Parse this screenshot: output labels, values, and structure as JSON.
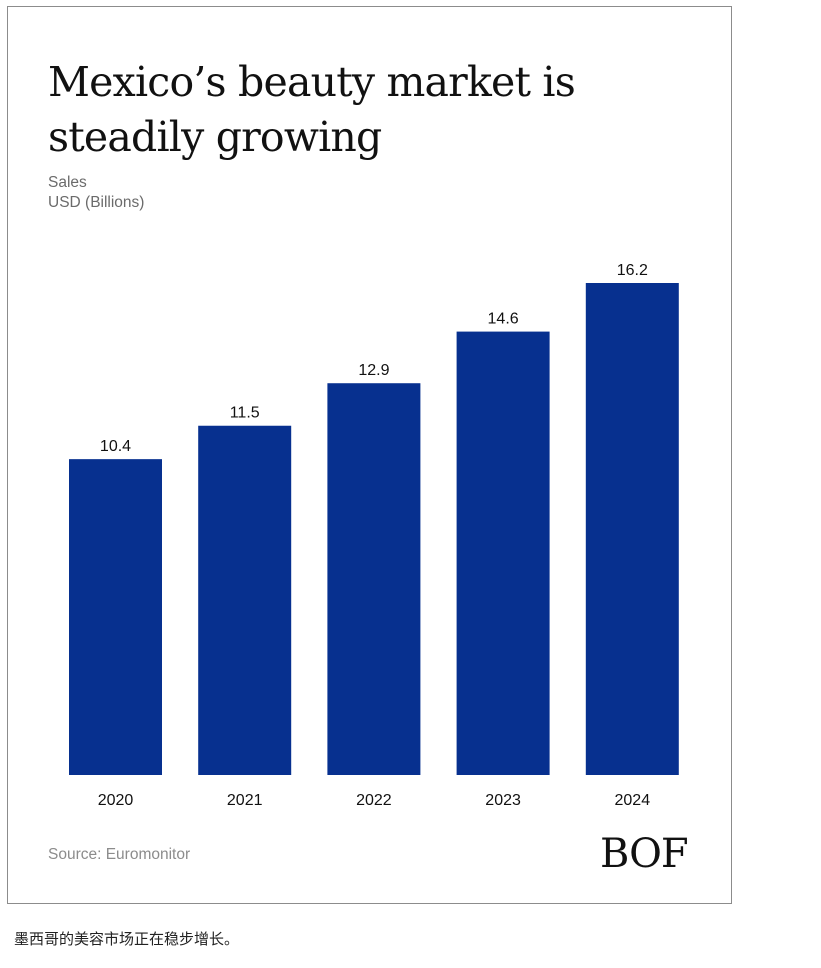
{
  "chart_data": {
    "type": "bar",
    "title": "Mexico’s beauty market is steadily growing",
    "subtitle_lines": [
      "Sales",
      "USD (Billions)"
    ],
    "ylabel": "Sales USD (Billions)",
    "xlabel": "",
    "categories": [
      "2020",
      "2021",
      "2022",
      "2023",
      "2024"
    ],
    "values": [
      10.4,
      11.5,
      12.9,
      14.6,
      16.2
    ],
    "data_labels": [
      "10.4",
      "11.5",
      "12.9",
      "14.6",
      "16.2"
    ],
    "ylim": [
      0,
      16.2
    ],
    "grid": false,
    "legend": "none",
    "bar_color": "#07308f"
  },
  "source": "Source: Euromonitor",
  "brand": "BOF",
  "caption": "墨西哥的美容市场正在稳步增长。"
}
